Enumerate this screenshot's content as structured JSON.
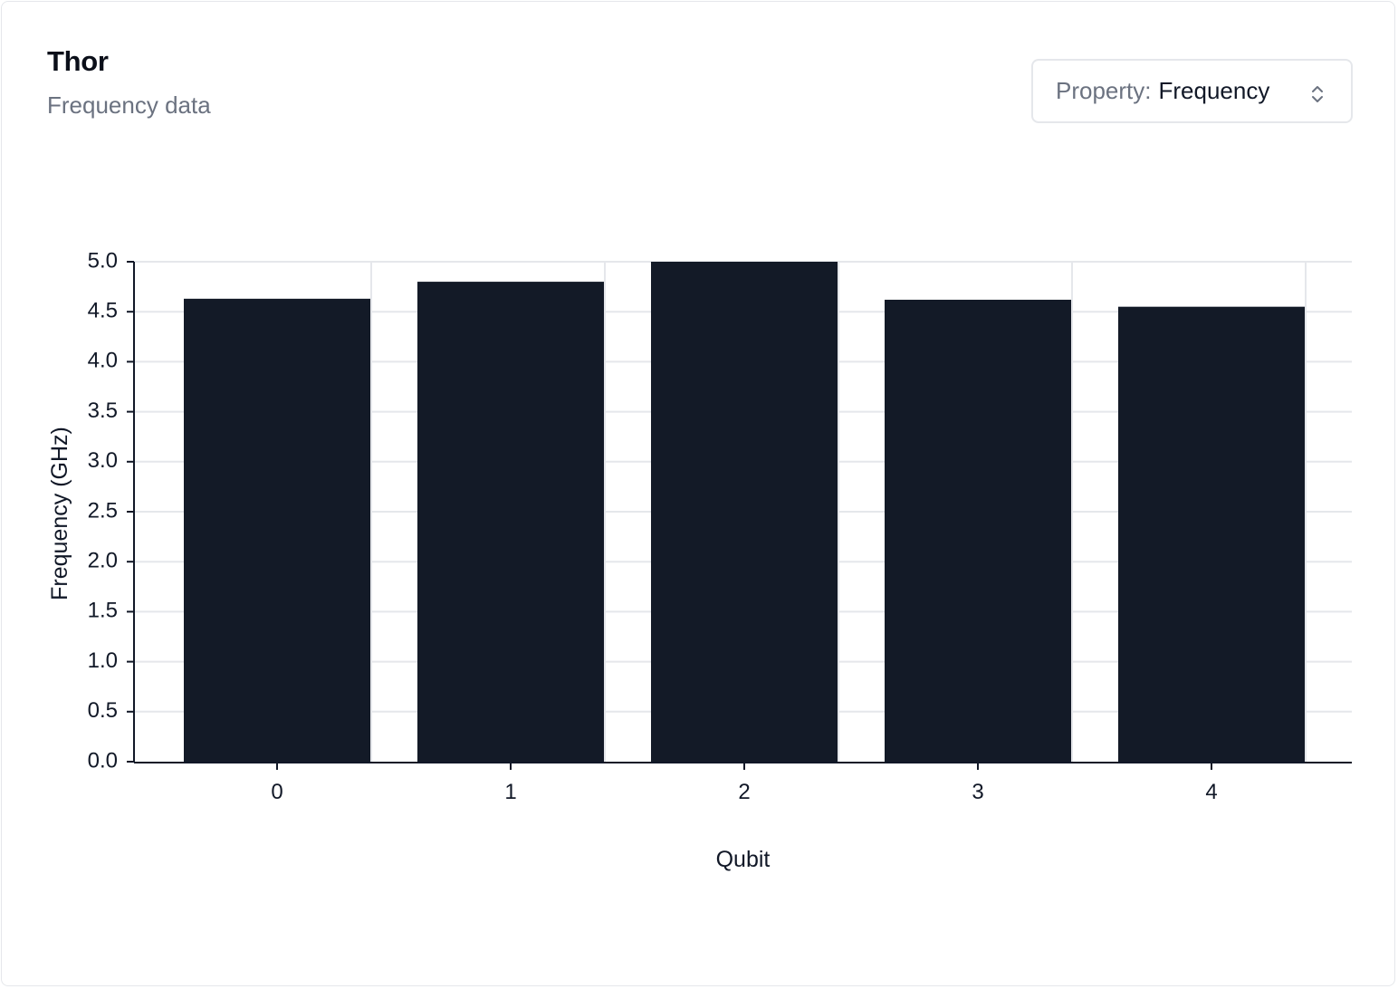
{
  "card": {
    "title": "Thor",
    "subtitle": "Frequency data"
  },
  "property_select": {
    "label": "Property:",
    "value": "Frequency",
    "icon": "chevron-up-down-icon"
  },
  "chart_data": {
    "type": "bar",
    "categories": [
      "0",
      "1",
      "2",
      "3",
      "4"
    ],
    "values": [
      4.63,
      4.8,
      5.0,
      4.62,
      4.55
    ],
    "xlabel": "Qubit",
    "ylabel": "Frequency (GHz)",
    "ylim": [
      0,
      5.0
    ],
    "yticks": [
      "0.0",
      "0.5",
      "1.0",
      "1.5",
      "2.0",
      "2.5",
      "3.0",
      "3.5",
      "4.0",
      "4.5",
      "5.0"
    ],
    "grid": true,
    "bar_color": "#131a27",
    "grid_color": "#e5e7eb"
  }
}
